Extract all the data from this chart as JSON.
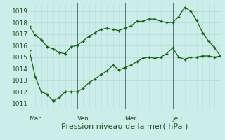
{
  "background_color": "#cceee8",
  "line_color": "#1a5c1a",
  "grid_color_major": "#aaddcc",
  "grid_color_minor": "#cceeee",
  "xlabel": "Pression niveau de la mer( hPa )",
  "ylim": [
    1010.5,
    1019.7
  ],
  "yticks": [
    1011,
    1012,
    1013,
    1014,
    1015,
    1016,
    1017,
    1018,
    1019
  ],
  "x_day_positions": [
    0,
    48,
    96,
    144,
    192
  ],
  "x_day_labels": [
    "Mar",
    "Ven",
    "Mer",
    "Jeu"
  ],
  "series1_x": [
    0,
    6,
    12,
    18,
    24,
    30,
    36,
    42,
    48,
    54,
    60,
    66,
    72,
    78,
    84,
    90,
    96,
    102,
    108,
    114,
    120,
    126,
    132,
    138,
    144,
    150,
    156,
    162,
    168,
    174,
    180,
    186,
    192
  ],
  "series1_y": [
    1017.7,
    1016.9,
    1016.5,
    1015.9,
    1015.7,
    1015.4,
    1015.3,
    1015.9,
    1016.0,
    1016.4,
    1016.8,
    1017.1,
    1017.4,
    1017.5,
    1017.4,
    1017.3,
    1017.5,
    1017.7,
    1018.1,
    1018.1,
    1018.3,
    1018.3,
    1018.1,
    1018.0,
    1018.0,
    1018.5,
    1019.3,
    1019.0,
    1018.2,
    1017.1,
    1016.4,
    1015.8,
    1015.1
  ],
  "series2_x": [
    0,
    6,
    12,
    18,
    24,
    30,
    36,
    42,
    48,
    54,
    60,
    66,
    72,
    78,
    84,
    90,
    96,
    102,
    108,
    114,
    120,
    126,
    132,
    138,
    144,
    150,
    156,
    162,
    168,
    174,
    180,
    186,
    192
  ],
  "series2_y": [
    1015.6,
    1013.3,
    1012.0,
    1011.8,
    1011.2,
    1011.5,
    1012.0,
    1012.0,
    1012.0,
    1012.3,
    1012.8,
    1013.1,
    1013.5,
    1013.8,
    1014.3,
    1013.9,
    1014.1,
    1014.3,
    1014.6,
    1014.9,
    1015.0,
    1014.9,
    1015.0,
    1015.3,
    1015.8,
    1015.0,
    1014.8,
    1015.0,
    1015.0,
    1015.1,
    1015.1,
    1015.0,
    1015.1
  ],
  "figsize": [
    3.2,
    2.0
  ],
  "dpi": 100
}
